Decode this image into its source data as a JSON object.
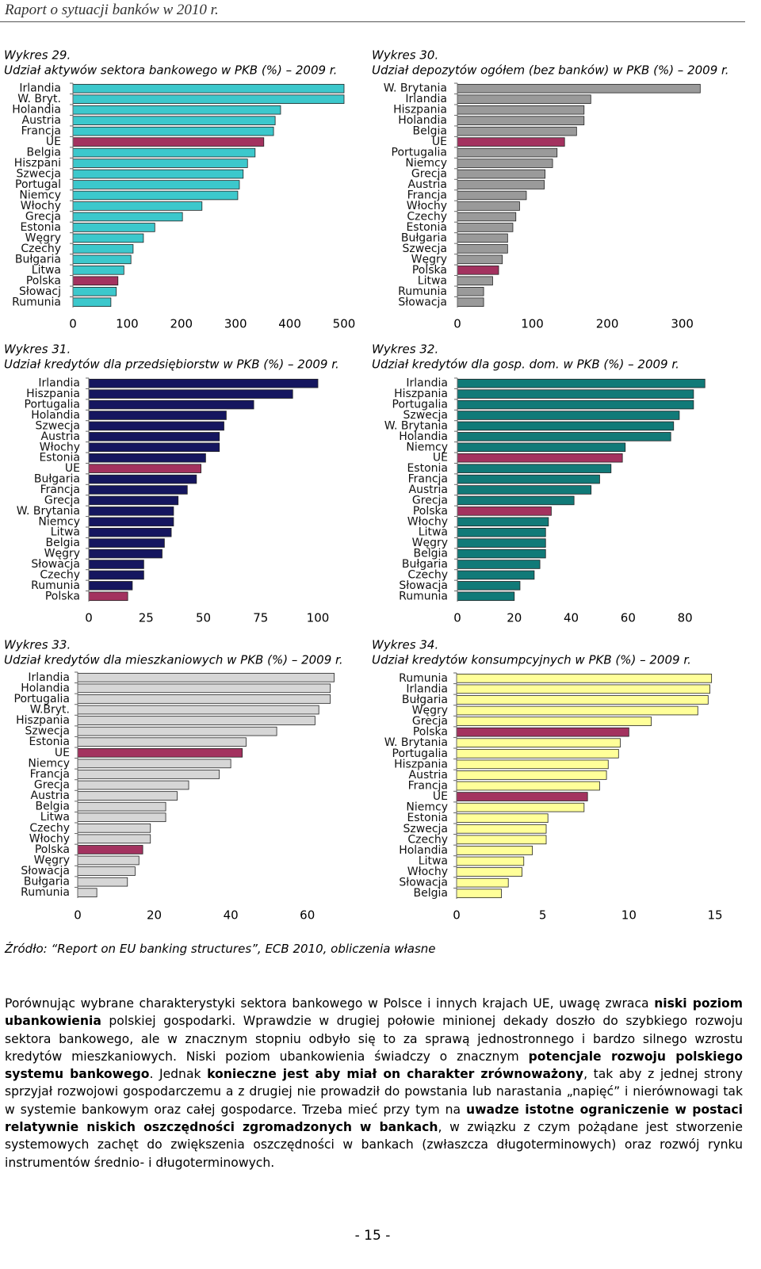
{
  "header": {
    "title": "Raport o sytuacji banków w 2010 r."
  },
  "chart_data": [
    {
      "type": "barh",
      "title": "Wykres 29.",
      "subtitle": "Udział aktywów sektora bankowego w PKB (%) – 2009 r.",
      "categories": [
        "Irlandia",
        "W. Bryt.",
        "Holandia",
        "Austria",
        "Francja",
        "UE",
        "Belgia",
        "Hiszpani",
        "Szwecja",
        "Portugal",
        "Niemcy",
        "Włochy",
        "Grecja",
        "Estonia",
        "Węgry",
        "Czechy",
        "Bułgaria",
        "Litwa",
        "Polska",
        "Słowacj",
        "Rumunia"
      ],
      "values": [
        500,
        500,
        383,
        373,
        370,
        352,
        336,
        322,
        314,
        307,
        304,
        238,
        202,
        151,
        130,
        111,
        107,
        94,
        83,
        80,
        70
      ],
      "colors": [
        "#3cc8cc",
        "#3cc8cc",
        "#3cc8cc",
        "#3cc8cc",
        "#3cc8cc",
        "#a3325f",
        "#3cc8cc",
        "#3cc8cc",
        "#3cc8cc",
        "#3cc8cc",
        "#3cc8cc",
        "#3cc8cc",
        "#3cc8cc",
        "#3cc8cc",
        "#3cc8cc",
        "#3cc8cc",
        "#3cc8cc",
        "#3cc8cc",
        "#a3325f",
        "#3cc8cc",
        "#3cc8cc"
      ],
      "xlim": [
        0,
        500
      ],
      "xticks": [
        0,
        100,
        200,
        300,
        400,
        500
      ]
    },
    {
      "type": "barh",
      "title": "Wykres 30.",
      "subtitle": "Udział depozytów ogółem (bez banków) w PKB (%) – 2009 r.",
      "categories": [
        "W. Brytania",
        "Irlandia",
        "Hiszpania",
        "Holandia",
        "Belgia",
        "UE",
        "Portugalia",
        "Niemcy",
        "Grecja",
        "Austria",
        "Francja",
        "Włochy",
        "Czechy",
        "Estonia",
        "Bułgaria",
        "Szwecja",
        "Węgry",
        "Polska",
        "Litwa",
        "Rumunia",
        "Słowacja"
      ],
      "values": [
        324,
        178,
        169,
        169,
        159,
        143,
        133,
        127,
        117,
        116,
        92,
        83,
        78,
        74,
        67,
        67,
        60,
        55,
        47,
        35,
        35
      ],
      "colors": [
        "#9a9a9a",
        "#9a9a9a",
        "#9a9a9a",
        "#9a9a9a",
        "#9a9a9a",
        "#a3325f",
        "#9a9a9a",
        "#9a9a9a",
        "#9a9a9a",
        "#9a9a9a",
        "#9a9a9a",
        "#9a9a9a",
        "#9a9a9a",
        "#9a9a9a",
        "#9a9a9a",
        "#9a9a9a",
        "#9a9a9a",
        "#a3325f",
        "#9a9a9a",
        "#9a9a9a",
        "#9a9a9a"
      ],
      "xlim": [
        0,
        330
      ],
      "xticks": [
        0,
        100,
        200,
        300
      ]
    },
    {
      "type": "barh",
      "title": "Wykres 31.",
      "subtitle": "Udział kredytów dla przedsiębiorstw w PKB (%) – 2009 r.",
      "categories": [
        "Irlandia",
        "Hiszpania",
        "Portugalia",
        "Holandia",
        "Szwecja",
        "Austria",
        "Włochy",
        "Estonia",
        "UE",
        "Bułgaria",
        "Francja",
        "Grecja",
        "W. Brytania",
        "Niemcy",
        "Litwa",
        "Belgia",
        "Węgry",
        "Słowacja",
        "Czechy",
        "Rumunia",
        "Polska"
      ],
      "values": [
        100,
        89,
        72,
        60,
        59,
        57,
        57,
        51,
        49,
        47,
        43,
        39,
        37,
        37,
        36,
        33,
        32,
        24,
        24,
        19,
        17
      ],
      "colors": [
        "#15165f",
        "#15165f",
        "#15165f",
        "#15165f",
        "#15165f",
        "#15165f",
        "#15165f",
        "#15165f",
        "#a3325f",
        "#15165f",
        "#15165f",
        "#15165f",
        "#15165f",
        "#15165f",
        "#15165f",
        "#15165f",
        "#15165f",
        "#15165f",
        "#15165f",
        "#15165f",
        "#a3325f"
      ],
      "xlim": [
        0,
        100
      ],
      "xticks": [
        0,
        25,
        50,
        75,
        100
      ]
    },
    {
      "type": "barh",
      "title": "Wykres 32.",
      "subtitle": "Udział kredytów dla gosp. dom. w PKB (%) – 2009 r.",
      "categories": [
        "Irlandia",
        "Hiszpania",
        "Portugalia",
        "Szwecja",
        "W. Brytania",
        "Holandia",
        "Niemcy",
        "UE",
        "Estonia",
        "Francja",
        "Austria",
        "Grecja",
        "Polska",
        "Włochy",
        "Litwa",
        "Węgry",
        "Belgia",
        "Bułgaria",
        "Czechy",
        "Słowacja",
        "Rumunia"
      ],
      "values": [
        87,
        83,
        83,
        78,
        76,
        75,
        59,
        58,
        54,
        50,
        47,
        41,
        33,
        32,
        31,
        31,
        31,
        29,
        27,
        22,
        20
      ],
      "colors": [
        "#117a78",
        "#117a78",
        "#117a78",
        "#117a78",
        "#117a78",
        "#117a78",
        "#117a78",
        "#a3325f",
        "#117a78",
        "#117a78",
        "#117a78",
        "#117a78",
        "#a3325f",
        "#117a78",
        "#117a78",
        "#117a78",
        "#117a78",
        "#117a78",
        "#117a78",
        "#117a78",
        "#117a78"
      ],
      "xlim": [
        0,
        90
      ],
      "xticks": [
        0,
        20,
        40,
        60,
        80
      ]
    },
    {
      "type": "barh",
      "title": "Wykres 33.",
      "subtitle": "Udział kredytów dla mieszkaniowych w PKB (%) – 2009 r.",
      "categories": [
        "Irlandia",
        "Holandia",
        "Portugalia",
        "W.Bryt.",
        "Hiszpania",
        "Szwecja",
        "Estonia",
        "UE",
        "Niemcy",
        "Francja",
        "Grecja",
        "Austria",
        "Belgia",
        "Litwa",
        "Czechy",
        "Włochy",
        "Polska",
        "Węgry",
        "Słowacja",
        "Bułgaria",
        "Rumunia"
      ],
      "values": [
        67,
        66,
        66,
        63,
        62,
        52,
        44,
        43,
        40,
        37,
        29,
        26,
        23,
        23,
        19,
        19,
        17,
        16,
        15,
        13,
        5
      ],
      "colors": [
        "#d6d6d6",
        "#d6d6d6",
        "#d6d6d6",
        "#d6d6d6",
        "#d6d6d6",
        "#d6d6d6",
        "#d6d6d6",
        "#a3325f",
        "#d6d6d6",
        "#d6d6d6",
        "#d6d6d6",
        "#d6d6d6",
        "#d6d6d6",
        "#d6d6d6",
        "#d6d6d6",
        "#d6d6d6",
        "#a3325f",
        "#d6d6d6",
        "#d6d6d6",
        "#d6d6d6",
        "#d6d6d6"
      ],
      "xlim": [
        0,
        70
      ],
      "xticks": [
        0,
        20,
        40,
        60
      ]
    },
    {
      "type": "barh",
      "title": "Wykres 34.",
      "subtitle": "Udział kredytów konsumpcyjnych w PKB (%) – 2009 r.",
      "categories": [
        "Rumunia",
        "Irlandia",
        "Bułgaria",
        "Węgry",
        "Grecja",
        "Polska",
        "W. Brytania",
        "Portugalia",
        "Hiszpania",
        "Austria",
        "Francja",
        "UE",
        "Niemcy",
        "Estonia",
        "Szwecja",
        "Czechy",
        "Holandia",
        "Litwa",
        "Włochy",
        "Słowacja",
        "Belgia"
      ],
      "values": [
        14.8,
        14.7,
        14.6,
        14.0,
        11.3,
        10.0,
        9.5,
        9.4,
        8.8,
        8.7,
        8.3,
        7.6,
        7.4,
        5.3,
        5.2,
        5.2,
        4.4,
        3.9,
        3.8,
        3.0,
        2.6
      ],
      "colors": [
        "#ffff99",
        "#ffff99",
        "#ffff99",
        "#ffff99",
        "#ffff99",
        "#a3325f",
        "#ffff99",
        "#ffff99",
        "#ffff99",
        "#ffff99",
        "#ffff99",
        "#a3325f",
        "#ffff99",
        "#ffff99",
        "#ffff99",
        "#ffff99",
        "#ffff99",
        "#ffff99",
        "#ffff99",
        "#ffff99",
        "#ffff99"
      ],
      "xlim": [
        0,
        15
      ],
      "xticks": [
        0,
        5,
        10,
        15
      ]
    }
  ],
  "source": "Źródło: “Report on EU banking structures”, ECB 2010, obliczenia własne",
  "paragraph": [
    {
      "text": "Porównując wybrane charakterystyki sektora bankowego w Polsce i innych krajach UE, uwagę zwraca ",
      "bold": false
    },
    {
      "text": "niski poziom ubankowienia",
      "bold": true
    },
    {
      "text": " polskiej gospodarki. Wprawdzie w drugiej połowie minionej dekady doszło do szybkiego rozwoju sektora bankowego, ale w znacznym stopniu odbyło się to za sprawą jednostronnego i bardzo silnego wzrostu kredytów mieszkaniowych. Niski poziom ubankowienia świadczy o znacznym ",
      "bold": false
    },
    {
      "text": "potencjale rozwoju polskiego systemu bankowego",
      "bold": true
    },
    {
      "text": ". Jednak ",
      "bold": false
    },
    {
      "text": "konieczne jest aby miał on charakter zrównoważony",
      "bold": true
    },
    {
      "text": ", tak aby z jednej strony sprzyjał rozwojowi gospodarczemu a z drugiej nie prowadził do powstania lub narastania „napięć” i nierównowagi tak w systemie bankowym oraz całej gospodarce. Trzeba mieć przy tym na ",
      "bold": false
    },
    {
      "text": "uwadze istotne ograniczenie w postaci relatywnie niskich oszczędności zgromadzonych w bankach",
      "bold": true
    },
    {
      "text": ", w związku z czym pożądane jest stworzenie systemowych zachęt do zwiększenia oszczędności w bankach (zwłaszcza długoterminowych) oraz rozwój rynku instrumentów średnio- i długoterminowych.",
      "bold": false
    }
  ],
  "page_number": "- 15 -"
}
